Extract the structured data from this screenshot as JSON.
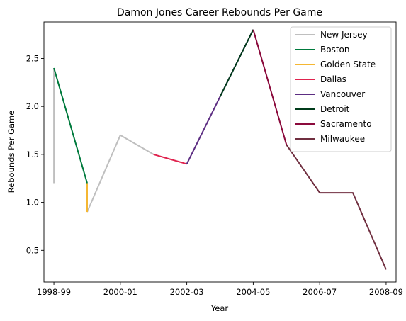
{
  "chart_data": {
    "type": "line",
    "title": "Damon Jones Career Rebounds Per Game",
    "xlabel": "Year",
    "ylabel": "Rebounds Per Game",
    "x_ticks": [
      "1998-99",
      "2000-01",
      "2002-03",
      "2004-05",
      "2006-07",
      "2008-09"
    ],
    "y_ticks": [
      "0.5",
      "1.0",
      "1.5",
      "2.0",
      "2.5"
    ],
    "xlim": [
      -0.3,
      10.3
    ],
    "ylim": [
      0.17,
      2.88
    ],
    "legend_position": "top-right",
    "grid": false,
    "series": [
      {
        "name": "New Jersey",
        "color": "#bfbfbf",
        "segments": [
          [
            [
              0,
              1.2
            ],
            [
              0,
              2.4
            ]
          ],
          [
            [
              1,
              0.9
            ],
            [
              2,
              1.7
            ],
            [
              3,
              1.5
            ]
          ]
        ]
      },
      {
        "name": "Boston",
        "color": "#007a3d",
        "segments": [
          [
            [
              0,
              2.4
            ],
            [
              1,
              1.2
            ]
          ]
        ]
      },
      {
        "name": "Golden State",
        "color": "#f5b733",
        "segments": [
          [
            [
              1,
              1.2
            ],
            [
              1,
              0.9
            ]
          ]
        ]
      },
      {
        "name": "Dallas",
        "color": "#e0234e",
        "segments": [
          [
            [
              3,
              1.5
            ],
            [
              4,
              1.4
            ]
          ]
        ]
      },
      {
        "name": "Vancouver",
        "color": "#5c2d82",
        "segments": [
          [
            [
              4,
              1.4
            ],
            [
              5,
              2.1
            ],
            [
              6,
              2.8
            ]
          ]
        ]
      },
      {
        "name": "Detroit",
        "color": "#003b1a",
        "segments": [
          [
            [
              5,
              2.1
            ],
            [
              6,
              2.8
            ]
          ]
        ]
      },
      {
        "name": "Sacramento",
        "color": "#8b0a3c",
        "segments": [
          [
            [
              6,
              2.8
            ],
            [
              7,
              1.6
            ]
          ]
        ]
      },
      {
        "name": "Milwaukee",
        "color": "#702f40",
        "segments": [
          [
            [
              7,
              1.6
            ],
            [
              8,
              1.1
            ],
            [
              9,
              1.1
            ],
            [
              10,
              0.3
            ]
          ]
        ]
      }
    ]
  }
}
